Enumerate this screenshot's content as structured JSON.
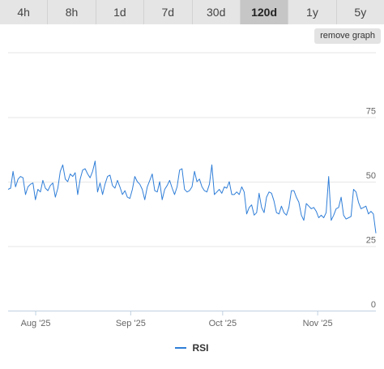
{
  "timeframe_tabs": [
    {
      "label": "4h",
      "active": false
    },
    {
      "label": "8h",
      "active": false
    },
    {
      "label": "1d",
      "active": false
    },
    {
      "label": "7d",
      "active": false
    },
    {
      "label": "30d",
      "active": false
    },
    {
      "label": "120d",
      "active": true
    },
    {
      "label": "1y",
      "active": false
    },
    {
      "label": "5y",
      "active": false
    }
  ],
  "remove_graph_label": "remove graph",
  "colors": {
    "series": "#2f7ed8",
    "grid": "#e6e6e6",
    "axis_text": "#666666"
  },
  "chart_data": {
    "type": "line",
    "x_type": "date",
    "y_ticks": [
      0,
      25,
      50,
      75
    ],
    "y_tick_labels": [
      "0",
      "25",
      "50",
      "75"
    ],
    "x_ticks": [
      "2025-08-01",
      "2025-09-01",
      "2025-10-01",
      "2025-11-01"
    ],
    "x_tick_labels": [
      "Aug '25",
      "Sep '25",
      "Oct '25",
      "Nov '25"
    ],
    "xlim": [
      "2025-07-23",
      "2025-11-20"
    ],
    "ylim": [
      0,
      100
    ],
    "grid": true,
    "legend_position": "bottom-center",
    "series": [
      {
        "name": "RSI",
        "values": [
          47,
          47.5,
          54,
          48,
          51,
          52,
          51.5,
          45,
          48,
          49,
          49.5,
          43,
          47,
          46,
          50.5,
          47.5,
          46.5,
          48.5,
          49.5,
          44,
          47.5,
          54,
          56.5,
          51,
          50,
          53,
          52,
          53.5,
          45,
          51,
          54.5,
          55,
          53,
          51.5,
          54,
          58,
          46,
          49.5,
          45,
          49,
          52,
          52.5,
          48.5,
          47.5,
          50.5,
          48,
          45,
          46.5,
          44,
          43.5,
          47,
          52,
          50,
          49,
          47,
          43,
          48,
          50.5,
          53,
          46.5,
          46,
          50,
          43,
          47,
          48.5,
          50.5,
          47.5,
          45,
          48,
          54.5,
          55,
          47,
          46,
          46.5,
          48,
          54,
          50,
          51,
          48,
          46.5,
          46,
          49,
          56.5,
          45,
          46,
          47,
          45.5,
          48,
          47.5,
          50,
          45,
          45,
          46,
          45,
          48,
          46,
          37.5,
          40,
          41,
          37,
          38,
          45.5,
          40,
          38,
          44,
          46,
          45.5,
          42.5,
          38,
          37.5,
          40.5,
          38,
          37,
          40,
          46.5,
          46.5,
          44,
          42,
          37,
          35,
          41.5,
          40.5,
          39.5,
          40,
          38.5,
          36,
          37,
          36,
          38,
          52,
          35,
          37,
          39.5,
          40,
          44,
          37,
          35.5,
          36,
          36.5,
          47,
          46,
          42,
          39.5,
          40,
          40.5,
          37.5,
          38.5,
          37.5,
          30
        ]
      }
    ]
  }
}
